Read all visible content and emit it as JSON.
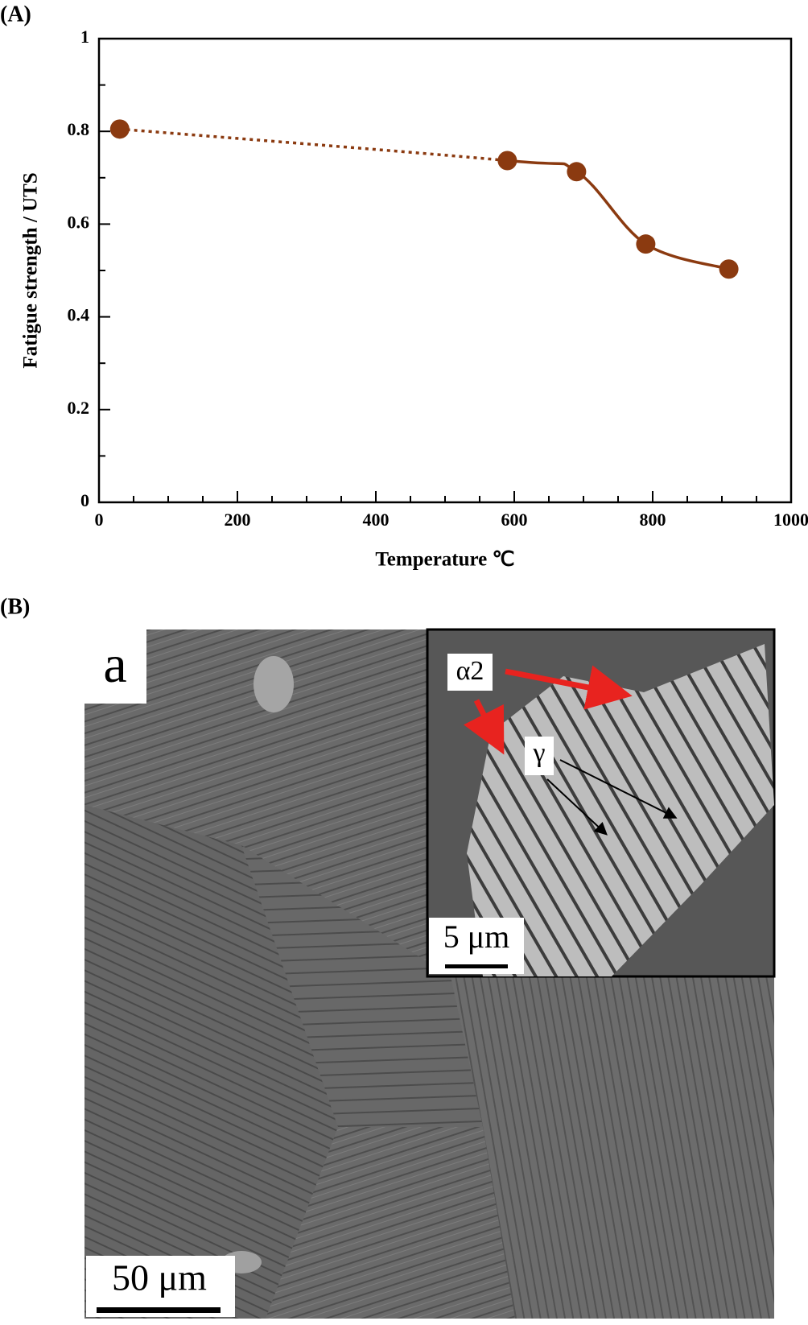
{
  "panel_labels": [
    "(A)",
    "(B)"
  ],
  "chart_data": {
    "type": "line",
    "xlabel": "Temperature ℃",
    "ylabel": "Fatigue strength / UTS",
    "x": [
      30,
      590,
      690,
      790,
      910
    ],
    "values": [
      0.805,
      0.737,
      0.713,
      0.557,
      0.503
    ],
    "color": "#8b3a10",
    "segment_styles": [
      "dotted",
      "solid",
      "solid",
      "solid"
    ],
    "xlim": [
      0,
      1000
    ],
    "ylim": [
      0,
      1
    ],
    "xticks": [
      0,
      200,
      400,
      600,
      800,
      1000
    ],
    "yticks": [
      0,
      0.2,
      0.4,
      0.6,
      0.8,
      1
    ],
    "xminorticks": [
      50,
      100,
      150,
      250,
      300,
      350,
      450,
      500,
      550,
      650,
      700,
      750,
      850,
      900,
      950
    ],
    "yminorticks": [
      0.1,
      0.3,
      0.5,
      0.7,
      0.9
    ]
  },
  "micrograph": {
    "panel_label": "a",
    "inset_labels": [
      "α2",
      "γ"
    ],
    "inset_scale_bar": "5 μm",
    "scale_bar": "50 μm"
  }
}
